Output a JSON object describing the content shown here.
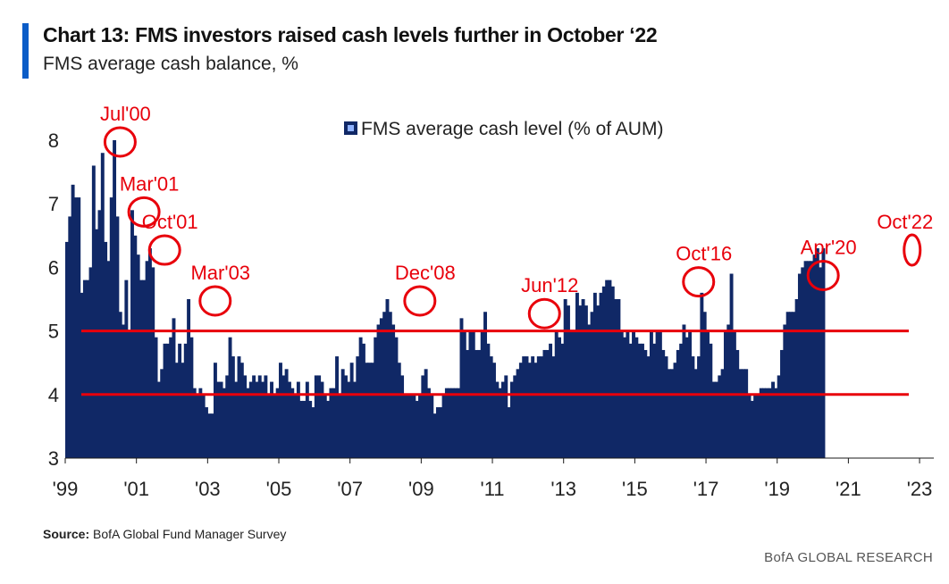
{
  "header": {
    "title": "Chart 13: FMS investors raised cash levels further in October ‘22",
    "subtitle": "FMS average cash balance, %"
  },
  "source": {
    "label": "Source:",
    "text": "BofA Global Fund Manager Survey"
  },
  "footer": "BofA GLOBAL RESEARCH",
  "colors": {
    "bar": "#102866",
    "reference_line": "#e8000b",
    "annotation": "#e8000b",
    "accent": "#0a5cc7"
  },
  "chart_data": {
    "type": "bar",
    "title": "",
    "ylim": [
      3,
      8.2
    ],
    "y_ticks": [
      3,
      4,
      5,
      6,
      7,
      8
    ],
    "x_range": [
      1999.0,
      2023.4
    ],
    "x_ticks": [
      {
        "year": 1999,
        "label": "'99"
      },
      {
        "year": 2001,
        "label": "'01"
      },
      {
        "year": 2003,
        "label": "'03"
      },
      {
        "year": 2005,
        "label": "'05"
      },
      {
        "year": 2007,
        "label": "'07"
      },
      {
        "year": 2009,
        "label": "'09"
      },
      {
        "year": 2011,
        "label": "'11"
      },
      {
        "year": 2013,
        "label": "'13"
      },
      {
        "year": 2015,
        "label": "'15"
      },
      {
        "year": 2017,
        "label": "'17"
      },
      {
        "year": 2019,
        "label": "'19"
      },
      {
        "year": 2021,
        "label": "'21"
      },
      {
        "year": 2023,
        "label": "'23"
      }
    ],
    "grid": false,
    "legend": {
      "position": "top-center",
      "label": "FMS average cash level (% of AUM)"
    },
    "reference_lines": [
      5.0,
      4.0
    ],
    "series": [
      {
        "name": "FMS average cash level (% of AUM)",
        "start_year": 1999.0,
        "frequency": "monthly",
        "values": [
          6.4,
          6.8,
          7.3,
          7.1,
          7.1,
          5.6,
          5.8,
          5.8,
          6.0,
          7.6,
          6.6,
          6.9,
          7.8,
          6.4,
          6.1,
          7.1,
          8.0,
          6.8,
          5.3,
          5.1,
          5.8,
          5.0,
          6.9,
          6.5,
          6.2,
          5.8,
          5.8,
          6.1,
          6.3,
          6.0,
          4.9,
          4.2,
          4.4,
          4.8,
          4.8,
          4.9,
          5.2,
          4.5,
          4.8,
          4.5,
          4.8,
          5.5,
          4.9,
          4.1,
          4.0,
          4.1,
          4.0,
          3.8,
          3.7,
          3.7,
          4.5,
          4.2,
          4.2,
          4.1,
          4.3,
          4.9,
          4.6,
          4.2,
          4.6,
          4.5,
          4.3,
          4.1,
          4.2,
          4.3,
          4.2,
          4.3,
          4.2,
          4.3,
          4.0,
          4.2,
          4.0,
          4.1,
          4.5,
          4.3,
          4.4,
          4.2,
          4.1,
          4.0,
          4.2,
          3.9,
          3.9,
          4.2,
          3.9,
          3.8,
          4.3,
          4.3,
          4.2,
          4.0,
          3.9,
          4.1,
          4.1,
          4.6,
          4.0,
          4.4,
          4.3,
          4.2,
          4.5,
          4.2,
          4.6,
          4.9,
          4.8,
          4.5,
          4.5,
          4.5,
          4.9,
          5.1,
          5.2,
          5.3,
          5.5,
          5.3,
          5.1,
          4.9,
          4.5,
          4.3,
          4.0,
          4.0,
          4.0,
          4.0,
          3.9,
          4.0,
          4.3,
          4.4,
          4.1,
          4.0,
          3.7,
          3.8,
          3.8,
          4.0,
          4.1,
          4.1,
          4.1,
          4.1,
          4.1,
          5.2,
          5.0,
          4.7,
          5.0,
          5.0,
          4.7,
          4.7,
          5.0,
          5.3,
          4.8,
          4.6,
          4.5,
          4.2,
          4.1,
          4.2,
          4.3,
          3.8,
          4.2,
          4.3,
          4.4,
          4.5,
          4.6,
          4.6,
          4.5,
          4.6,
          4.5,
          4.6,
          4.6,
          4.7,
          4.7,
          4.8,
          4.6,
          5.0,
          4.9,
          4.8,
          5.5,
          5.4,
          5.0,
          5.0,
          5.6,
          5.4,
          5.5,
          5.4,
          5.1,
          5.3,
          5.6,
          5.4,
          5.6,
          5.7,
          5.8,
          5.8,
          5.7,
          5.5,
          5.5,
          5.0,
          4.9,
          5.0,
          4.8,
          5.0,
          4.9,
          4.8,
          4.8,
          4.7,
          4.6,
          5.0,
          4.8,
          5.0,
          5.0,
          4.7,
          4.6,
          4.4,
          4.4,
          4.5,
          4.7,
          4.8,
          5.1,
          4.9,
          5.0,
          4.6,
          4.4,
          4.6,
          5.6,
          5.3,
          5.0,
          4.8,
          4.2,
          4.2,
          4.3,
          4.4,
          5.0,
          5.1,
          5.9,
          5.0,
          4.7,
          4.4,
          4.4,
          4.4,
          4.0,
          3.9,
          4.0,
          4.0,
          4.1,
          4.1,
          4.1,
          4.1,
          4.2,
          4.1,
          4.3,
          4.7,
          5.1,
          5.3,
          5.3,
          5.3,
          5.5,
          5.9,
          6.0,
          6.1,
          6.1,
          6.1,
          6.2,
          6.3,
          6.0,
          6.3
        ]
      }
    ],
    "annotations": [
      {
        "label": "Jul'00",
        "year": 2000.5,
        "value": 8.0
      },
      {
        "label": "Mar'01",
        "year": 2001.17,
        "value": 6.9
      },
      {
        "label": "Oct'01",
        "year": 2001.75,
        "value": 6.3
      },
      {
        "label": "Mar'03",
        "year": 2003.17,
        "value": 5.5
      },
      {
        "label": "Dec'08",
        "year": 2008.92,
        "value": 5.5
      },
      {
        "label": "Jun'12",
        "year": 2012.42,
        "value": 5.3
      },
      {
        "label": "Oct'16",
        "year": 2016.75,
        "value": 5.8
      },
      {
        "label": "Apr'20",
        "year": 2020.25,
        "value": 5.9
      },
      {
        "label": "Oct'22",
        "year": 2022.75,
        "value": 6.3
      }
    ]
  }
}
